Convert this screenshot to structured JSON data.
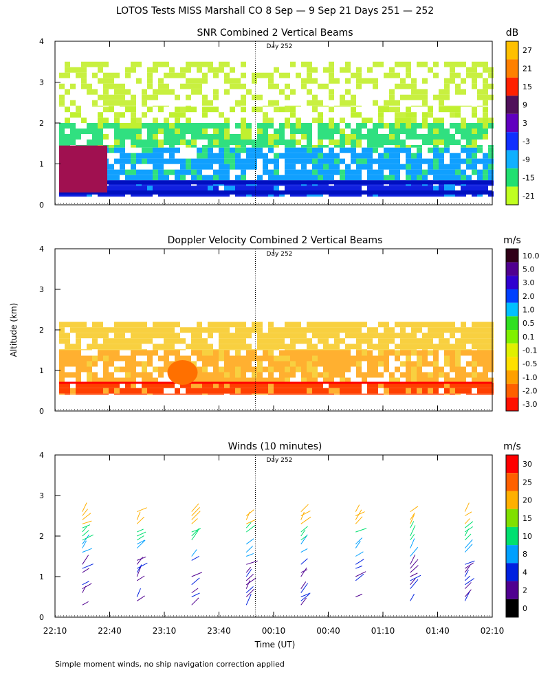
{
  "figure": {
    "title": "LOTOS Tests MISS Marshall CO   8 Sep —  9 Sep 21 Days 251 — 252",
    "ylabel": "Altitude (km)",
    "xlabel": "Time (UT)",
    "footnote": "Simple moment winds, no ship navigation correction applied",
    "day_marker_label": "Day 252"
  },
  "chart_data": [
    {
      "type": "heatmap",
      "title": "SNR Combined 2 Vertical Beams",
      "unit": "dB",
      "x_ticks": [
        "22:10",
        "22:40",
        "23:10",
        "23:40",
        "00:10",
        "00:40",
        "01:10",
        "01:40",
        "02:10"
      ],
      "y_ticks": [
        "0",
        "1",
        "2",
        "3",
        "4"
      ],
      "ylim": [
        0,
        4
      ],
      "xlim_minutes": [
        0,
        240
      ],
      "day_marker_minutes": 110,
      "colorbar_labels": [
        "27",
        "21",
        "15",
        "9",
        "3",
        "-3",
        "-9",
        "-15",
        "-21"
      ],
      "colorbar_colors": [
        "#ffc000",
        "#ff8000",
        "#ff2000",
        "#50105a",
        "#6000c0",
        "#1030ff",
        "#10b0ff",
        "#20e070",
        "#c0ff20"
      ],
      "bands": [
        {
          "y0": 0.2,
          "y1": 0.6,
          "color": "#1020e0"
        },
        {
          "y0": 0.6,
          "y1": 1.4,
          "color": "#10a0ff"
        },
        {
          "y0": 1.4,
          "y1": 2.0,
          "color": "#30e080"
        },
        {
          "y0": 2.0,
          "y1": 2.4,
          "color": "#c0f030"
        },
        {
          "y0": 2.4,
          "y1": 3.5,
          "color": "#c8f040"
        }
      ]
    },
    {
      "type": "heatmap",
      "title": "Doppler Velocity Combined 2 Vertical Beams",
      "unit": "m/s",
      "x_ticks": [
        "22:10",
        "22:40",
        "23:10",
        "23:40",
        "00:10",
        "00:40",
        "01:10",
        "01:40",
        "02:10"
      ],
      "y_ticks": [
        "0",
        "1",
        "2",
        "3",
        "4"
      ],
      "ylim": [
        0,
        4
      ],
      "xlim_minutes": [
        0,
        240
      ],
      "day_marker_minutes": 110,
      "colorbar_labels": [
        "10.0",
        "5.0",
        "3.0",
        "2.0",
        "1.0",
        "0.5",
        "0.1",
        "-0.1",
        "-0.5",
        "-1.0",
        "-2.0",
        "-3.0"
      ],
      "colorbar_colors": [
        "#300018",
        "#500090",
        "#3000d0",
        "#0040ff",
        "#00c0ff",
        "#30e020",
        "#80f000",
        "#e0f000",
        "#ffe000",
        "#ffa000",
        "#ff6000",
        "#ff1000"
      ],
      "bands": [
        {
          "y0": 0.4,
          "y1": 0.7,
          "color": "#ff4000"
        },
        {
          "y0": 0.7,
          "y1": 1.5,
          "color": "#ffb030"
        },
        {
          "y0": 1.5,
          "y1": 2.2,
          "color": "#f8d040"
        }
      ]
    },
    {
      "type": "barbs",
      "title": "Winds (10 minutes)",
      "unit": "m/s",
      "x_ticks": [
        "22:10",
        "22:40",
        "23:10",
        "23:40",
        "00:10",
        "00:40",
        "01:10",
        "01:40",
        "02:10"
      ],
      "y_ticks": [
        "0",
        "1",
        "2",
        "3",
        "4"
      ],
      "ylim": [
        0,
        4
      ],
      "xlim_minutes": [
        0,
        240
      ],
      "day_marker_minutes": 110,
      "colorbar_labels": [
        "30",
        "25",
        "20",
        "15",
        "10",
        "8",
        "4",
        "2",
        "0"
      ],
      "colorbar_colors": [
        "#ff0000",
        "#ff6000",
        "#ffb000",
        "#80e000",
        "#00e070",
        "#00a0ff",
        "#0020e0",
        "#500090",
        "#000000"
      ],
      "profile_times_minutes": [
        15,
        45,
        75,
        105,
        135,
        165,
        195,
        225
      ]
    }
  ]
}
